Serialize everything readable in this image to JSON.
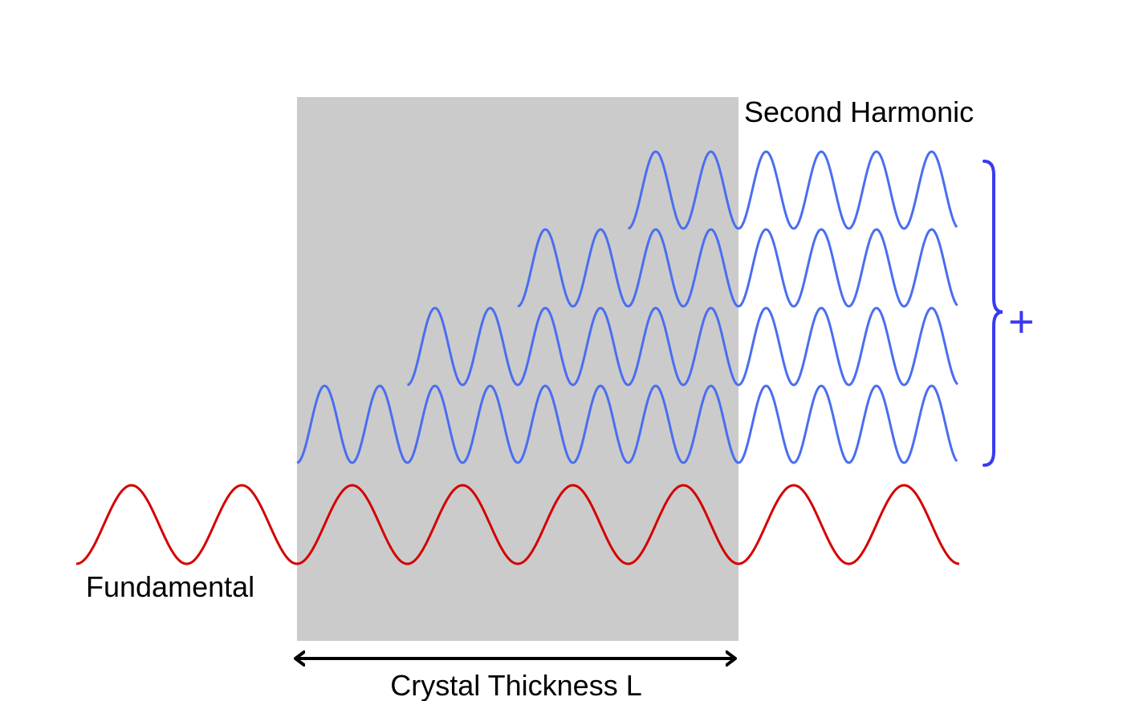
{
  "labels": {
    "second_harmonic": "Second Harmonic",
    "fundamental": "Fundamental",
    "crystal_thickness": "Crystal Thickness L",
    "sum_symbol": "+"
  },
  "colors": {
    "fundamental": "#d40000",
    "harmonic": "#4a6ef0",
    "brace": "#3a3af0",
    "crystal": "#cbcbcb",
    "arrow": "#000000"
  },
  "waves": {
    "fundamental_cycles": 8,
    "harmonic_rows": 4,
    "harmonic_row_start_cycles_into_crystal": [
      0,
      2,
      4,
      6
    ]
  }
}
